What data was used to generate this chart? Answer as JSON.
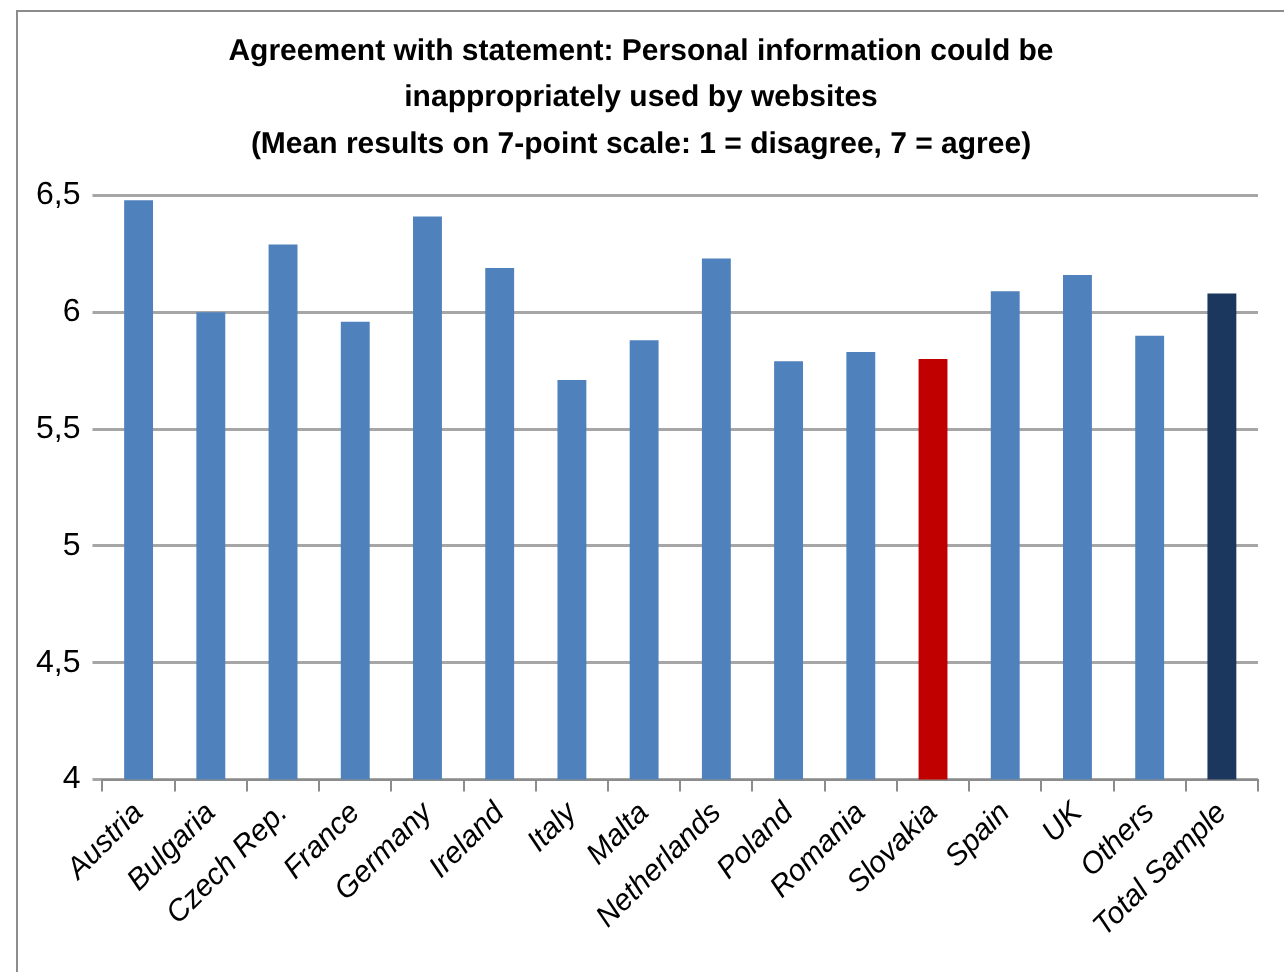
{
  "chart_data": {
    "type": "bar",
    "title": "Agreement with statement: Personal information could be inappropriately used by websites",
    "subtitle": "(Mean results on 7-point scale: 1 = disagree, 7 = agree)",
    "categories": [
      "Austria",
      "Bulgaria",
      "Czech Rep.",
      "France",
      "Germany",
      "Ireland",
      "Italy",
      "Malta",
      "Netherlands",
      "Poland",
      "Romania",
      "Slovakia",
      "Spain",
      "UK",
      "Others",
      "Total Sample"
    ],
    "values": [
      6.48,
      6.0,
      6.29,
      5.96,
      6.41,
      6.19,
      5.71,
      5.88,
      6.23,
      5.79,
      5.83,
      5.8,
      6.09,
      6.16,
      5.9,
      6.08
    ],
    "colors": [
      "#4f81bd",
      "#4f81bd",
      "#4f81bd",
      "#4f81bd",
      "#4f81bd",
      "#4f81bd",
      "#4f81bd",
      "#4f81bd",
      "#4f81bd",
      "#4f81bd",
      "#4f81bd",
      "#c00000",
      "#4f81bd",
      "#4f81bd",
      "#4f81bd",
      "#1b375e"
    ],
    "ylim": [
      4,
      6.5
    ],
    "yticks": [
      4,
      {
        "value": 4.5,
        "label": "4,5"
      },
      5,
      {
        "value": 5.5,
        "label": "5,5"
      },
      6,
      {
        "value": 6.5,
        "label": "6,5"
      }
    ],
    "grid": "y",
    "legend": false
  }
}
